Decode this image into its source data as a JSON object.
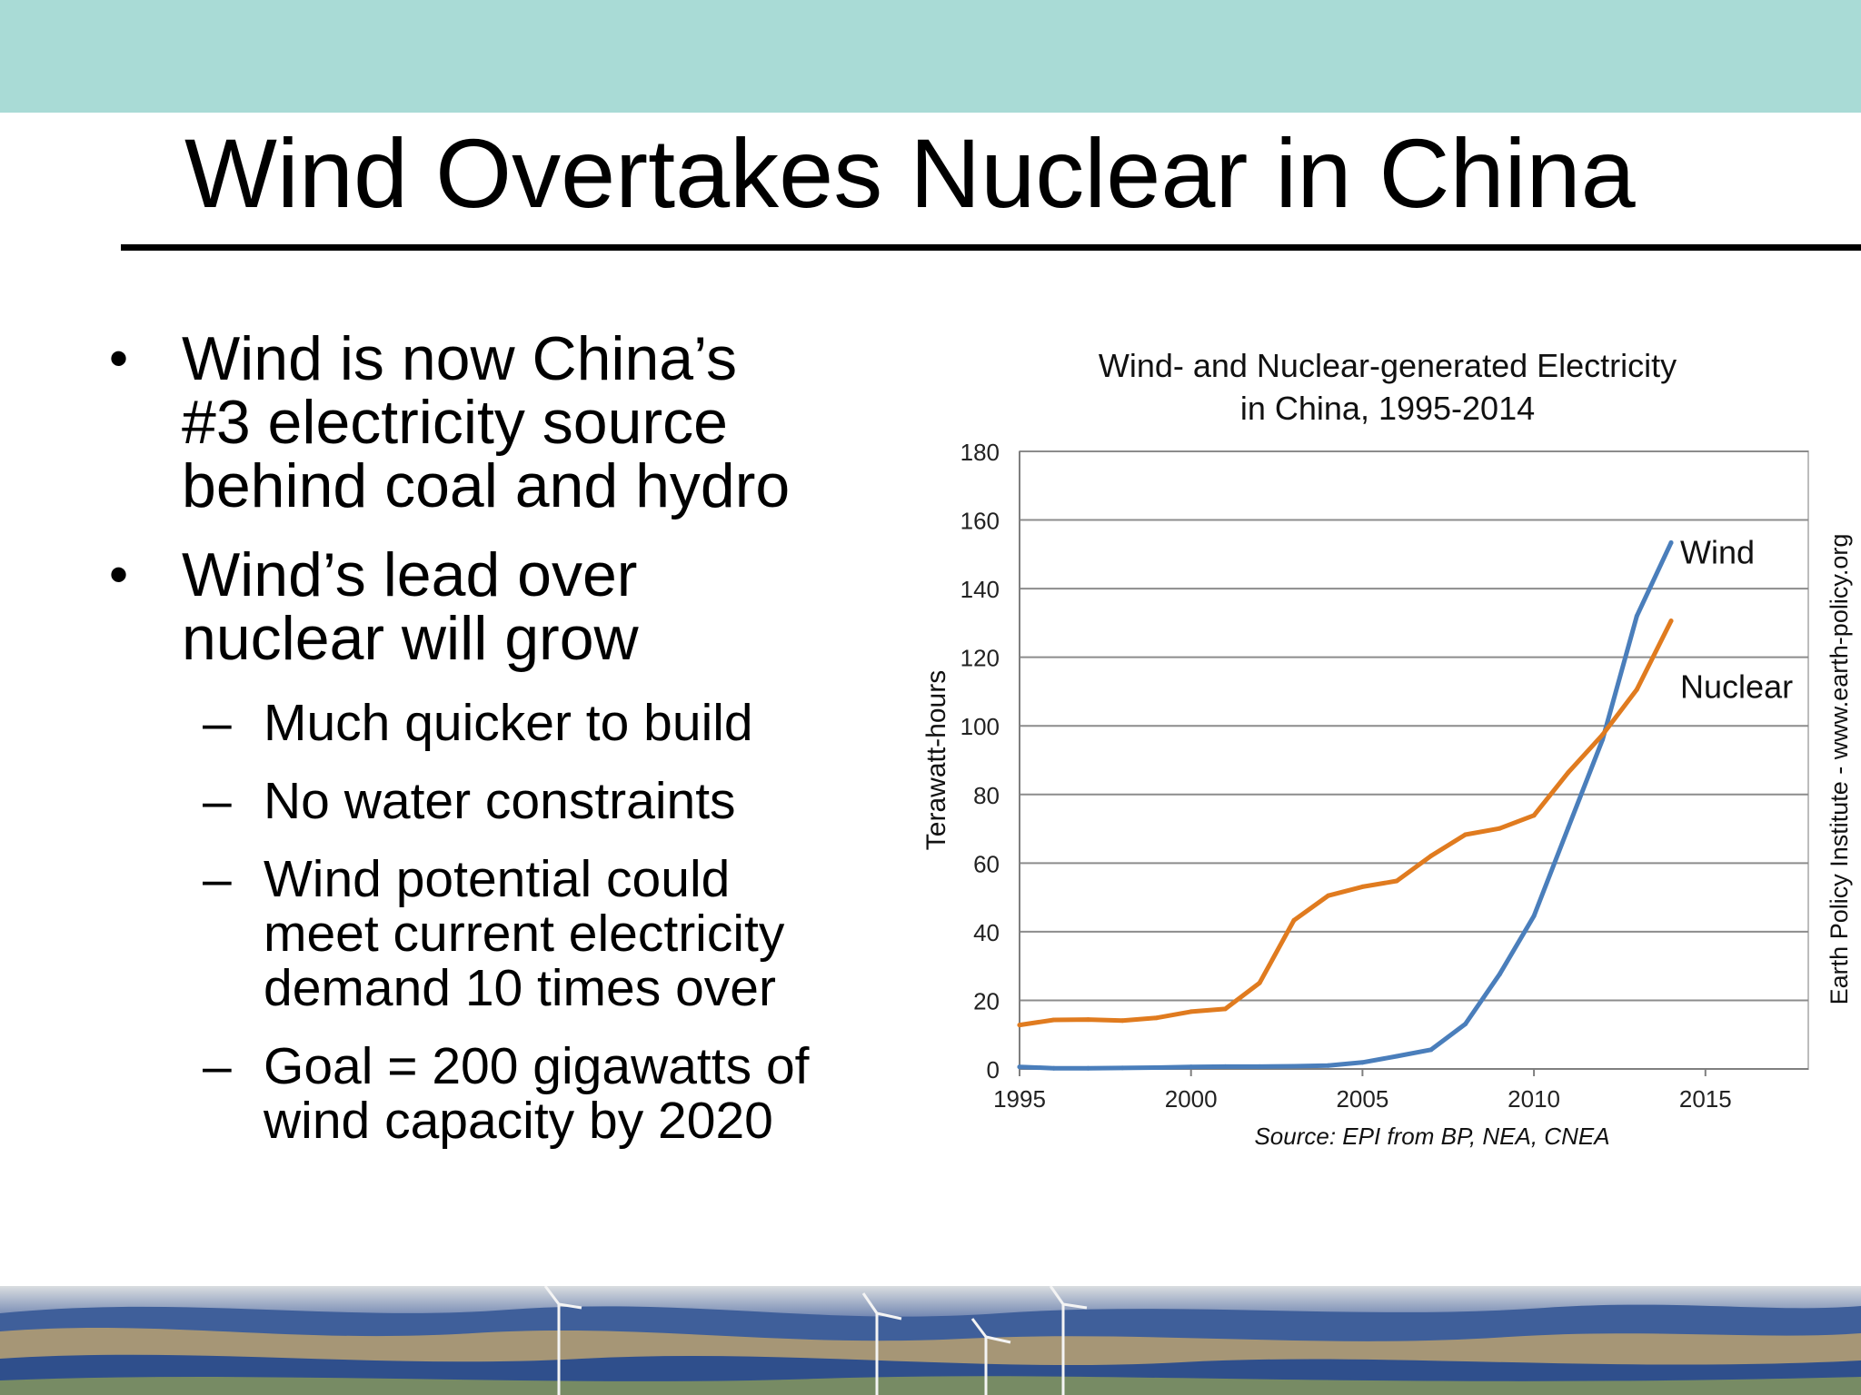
{
  "slide": {
    "title": "Wind Overtakes Nuclear in China",
    "bullets": [
      {
        "text": "Wind is now China’s #3 electricity source behind coal and hydro",
        "lines": [
          "Wind is now China’s",
          "#3 electricity source",
          "behind coal and hydro"
        ]
      },
      {
        "text": "Wind’s lead over nuclear will grow",
        "lines": [
          "Wind’s lead over",
          "nuclear will grow"
        ],
        "subs": [
          {
            "text": "Much quicker to build",
            "lines": [
              "Much quicker to build"
            ]
          },
          {
            "text": "No water constraints",
            "lines": [
              "No water constraints"
            ]
          },
          {
            "text": "Wind potential could meet current electricity demand 10 times over",
            "lines": [
              "Wind potential could",
              "meet current electricity",
              "demand 10 times over"
            ]
          },
          {
            "text": "Goal = 200 gigawatts of wind capacity by 2020",
            "lines": [
              "Goal = 200 gigawatts of",
              "wind capacity by 2020"
            ]
          }
        ]
      }
    ]
  },
  "chart_data": {
    "type": "line",
    "title": "Wind- and Nuclear-generated Electricity in China, 1995-2014",
    "title_lines": [
      "Wind- and Nuclear-generated Electricity",
      "in China, 1995-2014"
    ],
    "ylabel": "Terawatt-hours",
    "xlabel": "",
    "source": "Source: EPI from BP, NEA, CNEA",
    "credit": "Earth Policy Institute - www.earth-policy.org",
    "xlim": [
      1995,
      2018
    ],
    "ylim": [
      0,
      180
    ],
    "xticks": [
      1995,
      2000,
      2005,
      2010,
      2015
    ],
    "yticks": [
      0,
      20,
      40,
      60,
      80,
      100,
      120,
      140,
      160,
      180
    ],
    "grid": true,
    "legend": "direct labels at line ends",
    "series": [
      {
        "name": "Wind",
        "color": "#4a7ebb",
        "x": [
          1995,
          1996,
          1997,
          1998,
          1999,
          2000,
          2001,
          2002,
          2003,
          2004,
          2005,
          2006,
          2007,
          2008,
          2009,
          2010,
          2011,
          2012,
          2013,
          2014
        ],
        "values": [
          0.6,
          0.2,
          0.2,
          0.3,
          0.4,
          0.6,
          0.7,
          0.7,
          0.8,
          1.0,
          1.9,
          3.7,
          5.6,
          13.1,
          27.6,
          44.6,
          70.3,
          96.0,
          132.0,
          153.4
        ]
      },
      {
        "name": "Nuclear",
        "color": "#e07b1f",
        "x": [
          1995,
          1996,
          1997,
          1998,
          1999,
          2000,
          2001,
          2002,
          2003,
          2004,
          2005,
          2006,
          2007,
          2008,
          2009,
          2010,
          2011,
          2012,
          2013,
          2014
        ],
        "values": [
          12.8,
          14.3,
          14.4,
          14.1,
          14.9,
          16.7,
          17.5,
          25.1,
          43.3,
          50.5,
          53.1,
          54.8,
          62.1,
          68.3,
          70.1,
          73.9,
          86.4,
          97.4,
          110.6,
          130.6
        ]
      }
    ]
  }
}
